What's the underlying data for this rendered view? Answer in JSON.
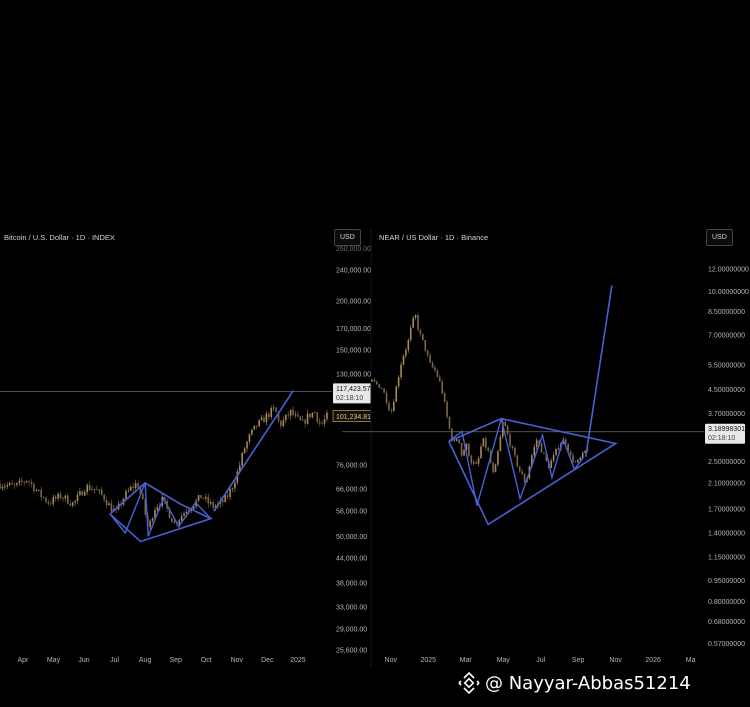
{
  "colors": {
    "background": "#000000",
    "candle_up": "#a88a5a",
    "candle_down": "#7c6848",
    "pattern_line": "#4a5fd6",
    "crosshair": "#6b6b6b",
    "badge_bg": "#e8e8e8",
    "badge_current_border": "#c58a2a"
  },
  "watermark": {
    "text": "@ Nayyar-Abbas51214"
  },
  "chart_data": [
    {
      "type": "candlestick",
      "title": "Bitcoin / U.S. Dollar · 1D · INDEX",
      "currency": "USD",
      "y_scale": "log",
      "ylim": [
        25600,
        270000
      ],
      "y_ticks": [
        "240,000.00",
        "200,000.00",
        "170,000.00",
        "150,000.00",
        "130,000.00",
        "101,234.81",
        "76,000.00",
        "66,000.00",
        "58,000.00",
        "50,000.00",
        "44,000.00",
        "38,000.00",
        "33,000.00",
        "29,000.00",
        "25,600.00"
      ],
      "y_tick_values": [
        240000,
        200000,
        170000,
        150000,
        130000,
        101234.81,
        76000,
        66000,
        58000,
        50000,
        44000,
        38000,
        33000,
        29000,
        25600
      ],
      "top_clipped_label": "260,000.00",
      "x_ticks": [
        "Apr",
        "May",
        "Jun",
        "Jul",
        "Aug",
        "Sep",
        "Oct",
        "Nov",
        "Dec",
        "2025"
      ],
      "x_tick_pos": [
        0.25,
        1.25,
        2.25,
        3.25,
        4.25,
        5.25,
        6.25,
        7.25,
        8.25,
        9.25
      ],
      "x_range": [
        -0.5,
        10.3
      ],
      "crosshair": {
        "value": 117423.57,
        "label": "117,423.57",
        "sub": "02:18:10"
      },
      "last_price": {
        "value": 101234.81,
        "label": "101,234.81"
      },
      "price_path": [
        [
          -0.5,
          68000
        ],
        [
          0.0,
          67000
        ],
        [
          0.4,
          70000
        ],
        [
          0.8,
          64000
        ],
        [
          1.1,
          61000
        ],
        [
          1.5,
          63500
        ],
        [
          1.9,
          60500
        ],
        [
          2.3,
          67000
        ],
        [
          2.6,
          66000
        ],
        [
          2.9,
          63000
        ],
        [
          3.1,
          59500
        ],
        [
          3.3,
          57500
        ],
        [
          3.55,
          63000
        ],
        [
          3.8,
          66500
        ],
        [
          4.0,
          68500
        ],
        [
          4.2,
          60000
        ],
        [
          4.35,
          52000
        ],
        [
          4.55,
          59000
        ],
        [
          4.8,
          62000
        ],
        [
          5.0,
          58000
        ],
        [
          5.2,
          54000
        ],
        [
          5.4,
          56000
        ],
        [
          5.6,
          58500
        ],
        [
          5.9,
          61000
        ],
        [
          6.1,
          63500
        ],
        [
          6.3,
          61000
        ],
        [
          6.5,
          59500
        ],
        [
          6.7,
          60500
        ],
        [
          6.9,
          62500
        ],
        [
          7.1,
          67000
        ],
        [
          7.3,
          74000
        ],
        [
          7.5,
          84000
        ],
        [
          7.7,
          91000
        ],
        [
          7.9,
          96000
        ],
        [
          8.1,
          99000
        ],
        [
          8.3,
          103000
        ],
        [
          8.5,
          106000
        ],
        [
          8.65,
          96000
        ],
        [
          8.8,
          99000
        ],
        [
          9.0,
          104000
        ],
        [
          9.2,
          100000
        ],
        [
          9.4,
          97000
        ],
        [
          9.6,
          102000
        ],
        [
          9.8,
          104000
        ],
        [
          10.0,
          96000
        ],
        [
          10.2,
          101234.81
        ]
      ],
      "pattern": [
        [
          3.1,
          57000
        ],
        [
          4.25,
          68500
        ],
        [
          5.4,
          60500
        ],
        [
          6.4,
          55500
        ],
        [
          4.1,
          48500
        ],
        [
          3.1,
          57000
        ],
        [
          4.35,
          50000
        ],
        [
          4.25,
          68500
        ],
        [
          4.8,
          57000
        ],
        [
          4.9,
          62500
        ],
        [
          5.3,
          56000
        ],
        [
          5.4,
          60500
        ]
      ],
      "trend_line": [
        [
          6.5,
          58000
        ],
        [
          9.1,
          118000
        ]
      ]
    },
    {
      "type": "candlestick",
      "title": "NEAR / US Dollar · 1D · Binance",
      "currency": "USD",
      "y_scale": "log",
      "ylim": [
        0.54,
        14.0
      ],
      "y_ticks": [
        "12.00000000",
        "10.00000000",
        "8.50000000",
        "7.00000000",
        "5.50000000",
        "4.50000000",
        "3.70000000",
        "2.50000000",
        "2.10000000",
        "1.70000000",
        "1.40000000",
        "1.15000000",
        "0.95000000",
        "0.80000000",
        "0.68000000",
        "0.57000000"
      ],
      "y_tick_values": [
        12.0,
        10.0,
        8.5,
        7.0,
        5.5,
        4.5,
        3.7,
        2.5,
        2.1,
        1.7,
        1.4,
        1.15,
        0.95,
        0.8,
        0.68,
        0.57
      ],
      "x_ticks": [
        "Nov",
        "2025",
        "Mar",
        "May",
        "Jul",
        "Sep",
        "Nov",
        "2026",
        "Ma"
      ],
      "x_tick_pos": [
        0.5,
        2.5,
        4.5,
        6.5,
        8.5,
        10.5,
        12.5,
        14.5,
        16.5
      ],
      "x_range": [
        -0.5,
        17.0
      ],
      "crosshair": {
        "value": 3.18998301,
        "label": "3.18998301",
        "sub": "02:18:10"
      },
      "price_path": [
        [
          -0.5,
          4.8
        ],
        [
          0.0,
          4.6
        ],
        [
          0.3,
          4.1
        ],
        [
          0.5,
          3.7
        ],
        [
          0.8,
          4.6
        ],
        [
          1.1,
          5.8
        ],
        [
          1.4,
          6.5
        ],
        [
          1.6,
          7.5
        ],
        [
          1.8,
          8.3
        ],
        [
          2.0,
          7.2
        ],
        [
          2.3,
          6.4
        ],
        [
          2.6,
          5.5
        ],
        [
          2.9,
          5.2
        ],
        [
          3.2,
          4.6
        ],
        [
          3.5,
          3.6
        ],
        [
          3.7,
          3.1
        ],
        [
          3.9,
          2.9
        ],
        [
          4.1,
          3.1
        ],
        [
          4.3,
          2.6
        ],
        [
          4.5,
          2.9
        ],
        [
          4.8,
          2.5
        ],
        [
          5.1,
          2.4
        ],
        [
          5.4,
          3.0
        ],
        [
          5.7,
          2.7
        ],
        [
          6.0,
          2.2
        ],
        [
          6.3,
          2.9
        ],
        [
          6.5,
          3.5
        ],
        [
          6.8,
          3.0
        ],
        [
          7.1,
          2.6
        ],
        [
          7.4,
          2.3
        ],
        [
          7.7,
          2.1
        ],
        [
          8.0,
          2.6
        ],
        [
          8.3,
          3.0
        ],
        [
          8.6,
          2.7
        ],
        [
          8.9,
          2.4
        ],
        [
          9.2,
          2.6
        ],
        [
          9.5,
          2.9
        ],
        [
          9.8,
          3.0
        ],
        [
          10.1,
          2.6
        ],
        [
          10.4,
          2.45
        ],
        [
          10.7,
          2.6
        ],
        [
          11.0,
          2.8
        ]
      ],
      "pattern": [
        [
          3.6,
          2.95
        ],
        [
          6.4,
          3.55
        ],
        [
          8.6,
          3.1
        ],
        [
          12.5,
          2.9
        ],
        [
          5.7,
          1.5
        ],
        [
          3.6,
          2.95
        ],
        [
          4.6,
          3.0
        ],
        [
          4.6,
          2.9
        ]
      ],
      "breakout_line": [
        [
          10.9,
          2.6
        ],
        [
          12.3,
          10.5
        ]
      ]
    }
  ]
}
